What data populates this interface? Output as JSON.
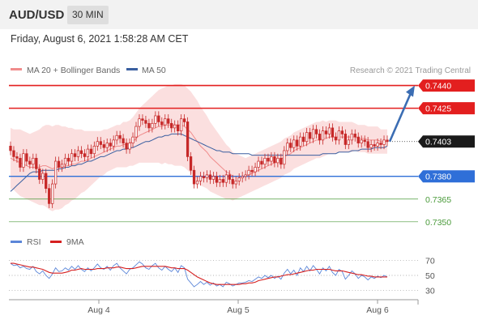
{
  "header": {
    "symbol": "AUD/USD",
    "timeframe": "30 MIN"
  },
  "datetime": "Friday, August 6, 2021 1:58:28 AM CET",
  "legend": {
    "bollinger": "MA 20 + Bollinger Bands",
    "ma50": "MA 50",
    "rsi": "RSI",
    "rsi_ma": "9MA",
    "copyright": "Research © 2021 Trading Central"
  },
  "colors": {
    "bollinger": "#f08c8c",
    "ma50": "#3a5fa0",
    "resistance": "#e31f1f",
    "support": "#2f6fd8",
    "support_minor": "#4a9a3a",
    "arrow": "#3b6db3",
    "candle": "#c62828",
    "rsi": "#5b86d8",
    "rsi_ma": "#d62020"
  },
  "chart_data": [
    {
      "type": "candlestick",
      "title": "AUD/USD",
      "x_ticks": [
        "Aug 4",
        "Aug 5",
        "Aug 6"
      ],
      "ylim": [
        0.7344,
        0.7443
      ],
      "levels": [
        {
          "value": "0.7440",
          "kind": "resistance"
        },
        {
          "value": "0.7425",
          "kind": "resistance"
        },
        {
          "value": "0.7403",
          "kind": "last"
        },
        {
          "value": "0.7380",
          "kind": "support"
        },
        {
          "value": "0.7365",
          "kind": "support_minor"
        },
        {
          "value": "0.7350",
          "kind": "support_minor"
        }
      ],
      "close": [
        0.7397,
        0.7393,
        0.7392,
        0.7386,
        0.7395,
        0.739,
        0.7388,
        0.7392,
        0.7385,
        0.7378,
        0.7382,
        0.7372,
        0.7362,
        0.7375,
        0.739,
        0.7386,
        0.7388,
        0.7392,
        0.739,
        0.7395,
        0.7393,
        0.7397,
        0.7395,
        0.7393,
        0.7398,
        0.7395,
        0.74,
        0.7403,
        0.7401,
        0.7399,
        0.7402,
        0.74,
        0.7404,
        0.7407,
        0.7405,
        0.7402,
        0.7398,
        0.7402,
        0.7406,
        0.7413,
        0.7418,
        0.7417,
        0.7415,
        0.7412,
        0.7415,
        0.742,
        0.7416,
        0.7414,
        0.7418,
        0.7415,
        0.7412,
        0.7414,
        0.741,
        0.7418,
        0.7416,
        0.7393,
        0.7384,
        0.7375,
        0.7377,
        0.738,
        0.7379,
        0.7381,
        0.7378,
        0.738,
        0.7376,
        0.7378,
        0.7376,
        0.7381,
        0.7378,
        0.7375,
        0.7377,
        0.7379,
        0.738,
        0.7381,
        0.7384,
        0.7383,
        0.7386,
        0.739,
        0.7388,
        0.7392,
        0.739,
        0.7393,
        0.7389,
        0.7392,
        0.7388,
        0.7397,
        0.7402,
        0.7399,
        0.7404,
        0.74,
        0.7406,
        0.7403,
        0.7409,
        0.7405,
        0.7411,
        0.7408,
        0.7404,
        0.741,
        0.7408,
        0.7412,
        0.7406,
        0.7404,
        0.741,
        0.7408,
        0.7401,
        0.7404,
        0.7408,
        0.7406,
        0.7402,
        0.7404,
        0.7403,
        0.7399,
        0.7401,
        0.74,
        0.7402,
        0.7401,
        0.7404,
        0.7403
      ],
      "ma50": [
        0.737,
        0.7372,
        0.7374,
        0.7376,
        0.7378,
        0.738,
        0.7382,
        0.7383,
        0.7383,
        0.7383,
        0.7384,
        0.7384,
        0.7384,
        0.7384,
        0.7384,
        0.7385,
        0.7385,
        0.7386,
        0.7386,
        0.7387,
        0.7387,
        0.7388,
        0.7388,
        0.7389,
        0.739,
        0.739,
        0.7391,
        0.7392,
        0.7393,
        0.7393,
        0.7394,
        0.7395,
        0.7396,
        0.7397,
        0.7397,
        0.7398,
        0.7398,
        0.7399,
        0.7399,
        0.74,
        0.7401,
        0.7402,
        0.7403,
        0.7403,
        0.7404,
        0.7405,
        0.7406,
        0.7406,
        0.7407,
        0.7407,
        0.7408,
        0.7408,
        0.7408,
        0.7408,
        0.7407,
        0.7406,
        0.7405,
        0.7404,
        0.7403,
        0.7402,
        0.7401,
        0.74,
        0.7399,
        0.7398,
        0.7397,
        0.7397,
        0.7396,
        0.7396,
        0.7396,
        0.7395,
        0.7395,
        0.7395,
        0.7395,
        0.7395,
        0.7395,
        0.7394,
        0.7394,
        0.7394,
        0.7394,
        0.7394,
        0.7394,
        0.7394,
        0.7394,
        0.7394,
        0.7394,
        0.7394,
        0.7394,
        0.7394,
        0.7394,
        0.7394,
        0.7394,
        0.7394,
        0.7394,
        0.7394,
        0.7394,
        0.7394,
        0.7394,
        0.7395,
        0.7395,
        0.7395,
        0.7395,
        0.7395,
        0.7396,
        0.7396,
        0.7396,
        0.7396,
        0.7397,
        0.7397,
        0.7397,
        0.7398,
        0.7398,
        0.7398,
        0.7398,
        0.7399,
        0.7399,
        0.7399,
        0.7399,
        0.74
      ],
      "bb_mid": [
        0.7392,
        0.7391,
        0.739,
        0.7389,
        0.7388,
        0.7387,
        0.7386,
        0.7386,
        0.7386,
        0.7386,
        0.7387,
        0.7387,
        0.7386,
        0.7385,
        0.7386,
        0.7386,
        0.7386,
        0.7387,
        0.7387,
        0.7388,
        0.7388,
        0.7389,
        0.739,
        0.739,
        0.7391,
        0.7392,
        0.7393,
        0.7394,
        0.7395,
        0.7396,
        0.7397,
        0.7398,
        0.7399,
        0.74,
        0.74,
        0.7401,
        0.7401,
        0.7402,
        0.7403,
        0.7405,
        0.7407,
        0.7408,
        0.7409,
        0.741,
        0.7411,
        0.7412,
        0.7413,
        0.7413,
        0.7414,
        0.7414,
        0.7414,
        0.7414,
        0.7414,
        0.7414,
        0.7413,
        0.7411,
        0.7409,
        0.7406,
        0.7403,
        0.74,
        0.7398,
        0.7396,
        0.7393,
        0.7391,
        0.7389,
        0.7387,
        0.7385,
        0.7383,
        0.7382,
        0.738,
        0.738,
        0.738,
        0.738,
        0.738,
        0.7381,
        0.7382,
        0.7383,
        0.7384,
        0.7385,
        0.7386,
        0.7387,
        0.7388,
        0.7389,
        0.739,
        0.7391,
        0.7393,
        0.7394,
        0.7395,
        0.7397,
        0.7398,
        0.7399,
        0.74,
        0.7401,
        0.7402,
        0.7403,
        0.7404,
        0.7404,
        0.7405,
        0.7405,
        0.7406,
        0.7406,
        0.7406,
        0.7406,
        0.7406,
        0.7406,
        0.7406,
        0.7406,
        0.7406,
        0.7405,
        0.7405,
        0.7405,
        0.7404,
        0.7404,
        0.7404,
        0.7404,
        0.7403,
        0.7403,
        0.7403
      ],
      "bb_width": [
        0.002,
        0.002,
        0.0021,
        0.0022,
        0.0022,
        0.0022,
        0.0022,
        0.0023,
        0.0024,
        0.0025,
        0.0026,
        0.0027,
        0.0028,
        0.0028,
        0.0028,
        0.0028,
        0.0027,
        0.0026,
        0.0025,
        0.0024,
        0.0023,
        0.0022,
        0.0021,
        0.002,
        0.0019,
        0.0018,
        0.0017,
        0.0016,
        0.0015,
        0.0015,
        0.0014,
        0.0014,
        0.0014,
        0.0014,
        0.0014,
        0.0015,
        0.0015,
        0.0015,
        0.0016,
        0.0017,
        0.0018,
        0.0019,
        0.002,
        0.0021,
        0.0022,
        0.0023,
        0.0024,
        0.0025,
        0.0025,
        0.0026,
        0.0026,
        0.0027,
        0.0027,
        0.0027,
        0.0027,
        0.0027,
        0.0027,
        0.0027,
        0.0027,
        0.0026,
        0.0025,
        0.0024,
        0.0023,
        0.0022,
        0.0021,
        0.002,
        0.0019,
        0.0018,
        0.0017,
        0.0016,
        0.0015,
        0.0014,
        0.0013,
        0.0012,
        0.0012,
        0.0012,
        0.0012,
        0.0012,
        0.0012,
        0.0012,
        0.0012,
        0.0012,
        0.0012,
        0.0012,
        0.0012,
        0.0012,
        0.0012,
        0.0012,
        0.0012,
        0.0012,
        0.0012,
        0.0012,
        0.0012,
        0.0012,
        0.0012,
        0.0012,
        0.0012,
        0.0012,
        0.0011,
        0.0011,
        0.0011,
        0.0011,
        0.001,
        0.001,
        0.001,
        0.001,
        0.001,
        0.0009,
        0.0009,
        0.0009,
        0.0009,
        0.0009,
        0.0009,
        0.0009,
        0.0009,
        0.0008,
        0.0008,
        0.0008
      ],
      "projection": {
        "from": 0.7403,
        "to": 0.744
      }
    },
    {
      "type": "line",
      "title": "RSI",
      "ylim": [
        20,
        80
      ],
      "ticks": [
        "70",
        "50",
        "30"
      ],
      "series": [
        {
          "name": "RSI",
          "values": [
            66,
            63,
            64,
            60,
            62,
            59,
            58,
            62,
            55,
            52,
            56,
            50,
            46,
            52,
            60,
            55,
            56,
            60,
            57,
            62,
            58,
            63,
            58,
            55,
            60,
            56,
            60,
            65,
            60,
            58,
            62,
            57,
            63,
            66,
            60,
            56,
            52,
            58,
            60,
            64,
            68,
            65,
            60,
            58,
            63,
            66,
            60,
            57,
            62,
            58,
            55,
            60,
            54,
            63,
            60,
            45,
            40,
            35,
            38,
            42,
            38,
            41,
            37,
            40,
            36,
            38,
            35,
            41,
            39,
            36,
            38,
            40,
            40,
            41,
            43,
            42,
            45,
            48,
            46,
            50,
            47,
            50,
            46,
            49,
            45,
            53,
            58,
            52,
            57,
            50,
            60,
            55,
            62,
            56,
            63,
            58,
            52,
            60,
            56,
            62,
            54,
            50,
            58,
            55,
            45,
            50,
            56,
            52,
            46,
            50,
            48,
            44,
            48,
            46,
            49,
            47,
            50,
            48
          ]
        },
        {
          "name": "9MA",
          "values": [
            66,
            66,
            65,
            64,
            63,
            62,
            61,
            61,
            60,
            59,
            58,
            56,
            54,
            53,
            53,
            53,
            53,
            54,
            55,
            57,
            57,
            58,
            59,
            58,
            58,
            58,
            58,
            59,
            59,
            59,
            60,
            60,
            60,
            61,
            61,
            60,
            59,
            59,
            59,
            60,
            61,
            62,
            62,
            62,
            62,
            62,
            62,
            62,
            62,
            61,
            60,
            60,
            59,
            59,
            59,
            57,
            54,
            51,
            48,
            46,
            44,
            42,
            40,
            39,
            38,
            38,
            38,
            38,
            38,
            38,
            38,
            38,
            39,
            39,
            40,
            40,
            41,
            43,
            44,
            45,
            46,
            47,
            48,
            48,
            49,
            50,
            51,
            51,
            52,
            53,
            54,
            55,
            56,
            57,
            57,
            58,
            58,
            58,
            58,
            58,
            57,
            56,
            56,
            56,
            55,
            54,
            53,
            52,
            51,
            51,
            50,
            49,
            49,
            48,
            48,
            48,
            48,
            48
          ]
        }
      ]
    }
  ]
}
